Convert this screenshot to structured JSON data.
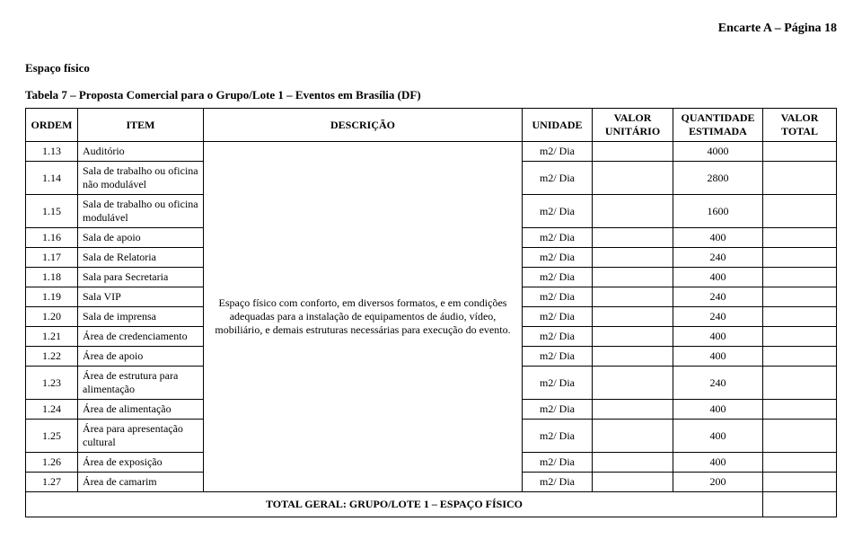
{
  "header": {
    "page_label": "Encarte A – Página 18"
  },
  "section": {
    "title": "Espaço físico"
  },
  "table": {
    "title": "Tabela 7 – Proposta Comercial para o Grupo/Lote 1 – Eventos em Brasília (DF)",
    "columns": {
      "ordem": "ORDEM",
      "item": "ITEM",
      "descricao": "DESCRIÇÃO",
      "unidade": "UNIDADE",
      "valor_unitario": "VALOR UNITÁRIO",
      "quantidade_estimada": "QUANTIDADE ESTIMADA",
      "valor_total": "VALOR TOTAL"
    },
    "descricao_text": "Espaço físico com conforto, em diversos formatos, e em condições adequadas para a instalação de equipamentos de áudio, vídeo, mobiliário, e demais estruturas necessárias para execução do evento.",
    "rows": [
      {
        "ordem": "1.13",
        "item": "Auditório",
        "unidade": "m2/ Dia",
        "qtd": "4000"
      },
      {
        "ordem": "1.14",
        "item": "Sala de trabalho ou oficina não modulável",
        "unidade": "m2/ Dia",
        "qtd": "2800"
      },
      {
        "ordem": "1.15",
        "item": "Sala de trabalho ou oficina modulável",
        "unidade": "m2/ Dia",
        "qtd": "1600"
      },
      {
        "ordem": "1.16",
        "item": "Sala de apoio",
        "unidade": "m2/ Dia",
        "qtd": "400"
      },
      {
        "ordem": "1.17",
        "item": "Sala de Relatoria",
        "unidade": "m2/ Dia",
        "qtd": "240"
      },
      {
        "ordem": "1.18",
        "item": "Sala para Secretaria",
        "unidade": "m2/ Dia",
        "qtd": "400"
      },
      {
        "ordem": "1.19",
        "item": "Sala VIP",
        "unidade": "m2/ Dia",
        "qtd": "240"
      },
      {
        "ordem": "1.20",
        "item": "Sala de imprensa",
        "unidade": "m2/ Dia",
        "qtd": "240"
      },
      {
        "ordem": "1.21",
        "item": "Área de credenciamento",
        "unidade": "m2/ Dia",
        "qtd": "400"
      },
      {
        "ordem": "1.22",
        "item": "Área de apoio",
        "unidade": "m2/ Dia",
        "qtd": "400"
      },
      {
        "ordem": "1.23",
        "item": "Área de estrutura para alimentação",
        "unidade": "m2/ Dia",
        "qtd": "240"
      },
      {
        "ordem": "1.24",
        "item": "Área de alimentação",
        "unidade": "m2/ Dia",
        "qtd": "400"
      },
      {
        "ordem": "1.25",
        "item": "Área para apresentação cultural",
        "unidade": "m2/ Dia",
        "qtd": "400"
      },
      {
        "ordem": "1.26",
        "item": "Área de exposição",
        "unidade": "m2/ Dia",
        "qtd": "400"
      },
      {
        "ordem": "1.27",
        "item": "Área de camarim",
        "unidade": "m2/ Dia",
        "qtd": "200"
      }
    ],
    "total_label": "TOTAL GERAL: GRUPO/LOTE 1 – ESPAÇO FÍSICO"
  }
}
